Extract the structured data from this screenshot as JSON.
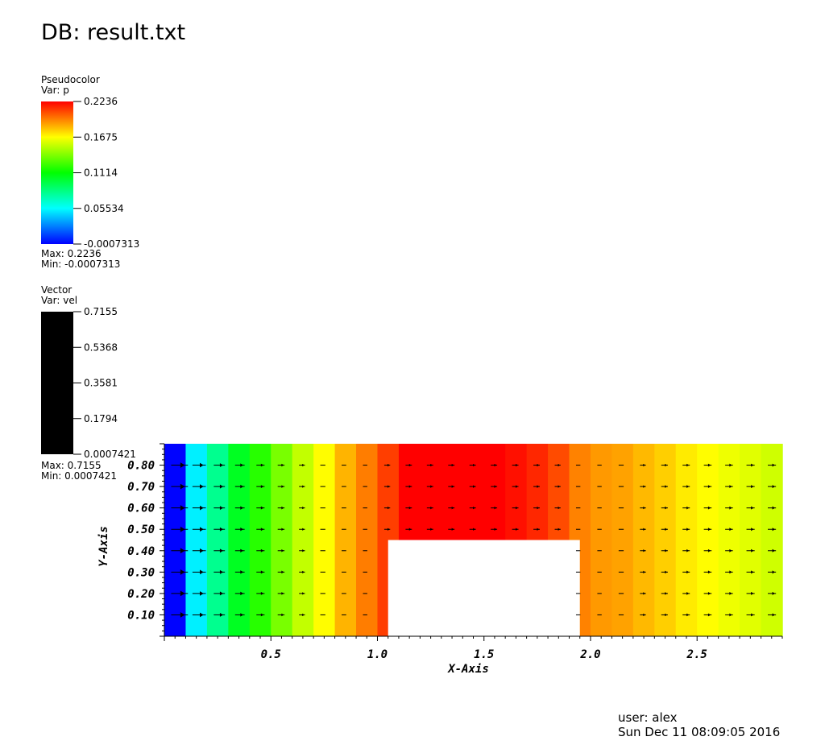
{
  "db_title": "DB: result.txt",
  "pseudocolor_legend": {
    "plot_type": "Pseudocolor",
    "var_label": "Var: p",
    "tick_labels": [
      "0.2236",
      "0.1675",
      "0.1114",
      "0.05534",
      "-0.0007313"
    ],
    "max_label": "Max:  0.2236",
    "min_label": "Min: -0.0007313",
    "colormap": [
      "#0000ff",
      "#00ffff",
      "#00ff00",
      "#ffff00",
      "#ff0000"
    ]
  },
  "vector_legend": {
    "plot_type": "Vector",
    "var_label": "Var: vel",
    "tick_labels": [
      "0.7155",
      "0.5368",
      "0.3581",
      "0.1794",
      "0.0007421"
    ],
    "max_label": "Max:  0.7155",
    "min_label": "Min:  0.0007421",
    "color": "#000000"
  },
  "footer": {
    "user": "user: alex",
    "date": "Sun Dec 11 08:09:05 2016"
  },
  "chart_data": {
    "type": "heatmap",
    "xlabel": "X-Axis",
    "ylabel": "Y-Axis",
    "xlim": [
      0,
      2.9
    ],
    "ylim": [
      0,
      0.9
    ],
    "x_ticks": [
      0.5,
      1.0,
      1.5,
      2.0,
      2.5
    ],
    "x_tick_labels": [
      "0.5",
      "1.0",
      "1.5",
      "2.0",
      "2.5"
    ],
    "y_ticks": [
      0.1,
      0.2,
      0.3,
      0.4,
      0.5,
      0.6,
      0.7,
      0.8
    ],
    "y_tick_labels": [
      "0.10",
      "0.20",
      "0.30",
      "0.40",
      "0.50",
      "0.60",
      "0.70",
      "0.80"
    ],
    "variable": "p",
    "value_range": [
      -0.0007313,
      0.2236
    ],
    "obstacle": {
      "x": [
        1.05,
        1.95
      ],
      "y": [
        0,
        0.45
      ]
    },
    "column_width": 0.1,
    "column_values": [
      0.0,
      0.052,
      0.08,
      0.104,
      0.12,
      0.138,
      0.154,
      0.168,
      0.184,
      0.196,
      0.21,
      0.2236,
      0.2236,
      0.2236,
      0.2236,
      0.2236,
      0.22,
      0.215,
      0.207,
      0.195,
      0.19,
      0.188,
      0.183,
      0.178,
      0.172,
      0.168,
      0.164,
      0.161,
      0.157,
      0.154
    ],
    "vector_rows": [
      0.1,
      0.2,
      0.3,
      0.4,
      0.5,
      0.6,
      0.7,
      0.8
    ],
    "vector_columns": [
      0.1,
      0.2,
      0.3,
      0.4,
      0.5,
      0.6,
      0.7,
      0.8,
      0.9,
      1.0,
      1.1,
      1.2,
      1.3,
      1.4,
      1.5,
      1.6,
      1.7,
      1.8,
      1.9,
      2.0,
      2.1,
      2.2,
      2.3,
      2.4,
      2.5,
      2.6,
      2.7,
      2.8,
      2.9
    ],
    "vector_u_by_column": [
      0.6,
      0.45,
      0.35,
      0.28,
      0.22,
      0.16,
      0.12,
      0.08,
      0.06,
      0.05,
      0.12,
      0.14,
      0.14,
      0.14,
      0.14,
      0.14,
      0.14,
      0.14,
      0.12,
      0.05,
      0.05,
      0.08,
      0.12,
      0.15,
      0.18,
      0.2,
      0.2,
      0.22,
      0.22
    ]
  }
}
